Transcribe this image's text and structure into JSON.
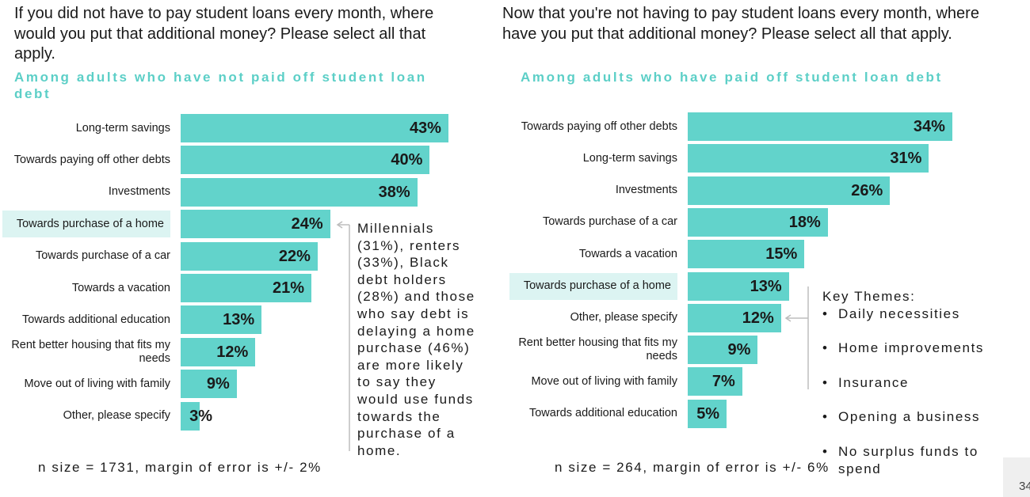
{
  "chart_data": [
    {
      "type": "bar",
      "question": "If you did not have to pay student loans every month, where would you put that additional money? Please select all that apply.",
      "subtitle": "Among adults who have not paid off student loan debt",
      "categories": [
        "Long-term savings",
        "Towards paying off other debts",
        "Investments",
        "Towards purchase of a home",
        "Towards purchase of a car",
        "Towards a vacation",
        "Towards additional education",
        "Rent better housing that fits my needs",
        "Move out of living with family",
        "Other, please specify"
      ],
      "values": [
        43,
        40,
        38,
        24,
        22,
        21,
        13,
        12,
        9,
        3
      ],
      "value_labels": [
        "43%",
        "40%",
        "38%",
        "24%",
        "22%",
        "21%",
        "13%",
        "12%",
        "9%",
        "3%"
      ],
      "color": "#62d3cb",
      "annotation": [
        "Millennials",
        "(31%), renters",
        "(33%), Black",
        "debt holders",
        "(28%) and those",
        "who say debt is",
        "delaying a home",
        "purchase (46%)",
        "are more likely",
        "to say they",
        "would use funds",
        "towards the",
        "purchase of a",
        "home."
      ],
      "footnote": "n size = 1731, margin of error is +/- 2%"
    },
    {
      "type": "bar",
      "question": "Now that you're not having to pay student loans every month, where have you put that additional money? Please select all that apply.",
      "subtitle": "Among adults who have paid off student loan debt",
      "categories": [
        "Towards paying off other debts",
        "Long-term savings",
        "Investments",
        "Towards purchase of a car",
        "Towards a vacation",
        "Towards purchase of a home",
        "Other, please specify",
        "Rent better housing that fits my needs",
        "Move out of living with family",
        "Towards additional education"
      ],
      "values": [
        34,
        31,
        26,
        18,
        15,
        13,
        12,
        9,
        7,
        5
      ],
      "value_labels": [
        "34%",
        "31%",
        "26%",
        "18%",
        "15%",
        "13%",
        "12%",
        "9%",
        "7%",
        "5%"
      ],
      "color": "#62d3cb",
      "key_themes_title": "Key Themes:",
      "key_themes": [
        "Daily necessities",
        "Home improvements",
        "Insurance",
        "Opening a business",
        "No surplus funds to spend"
      ],
      "footnote": "n size = 264, margin of error is +/- 6%"
    }
  ],
  "page_number": "34"
}
